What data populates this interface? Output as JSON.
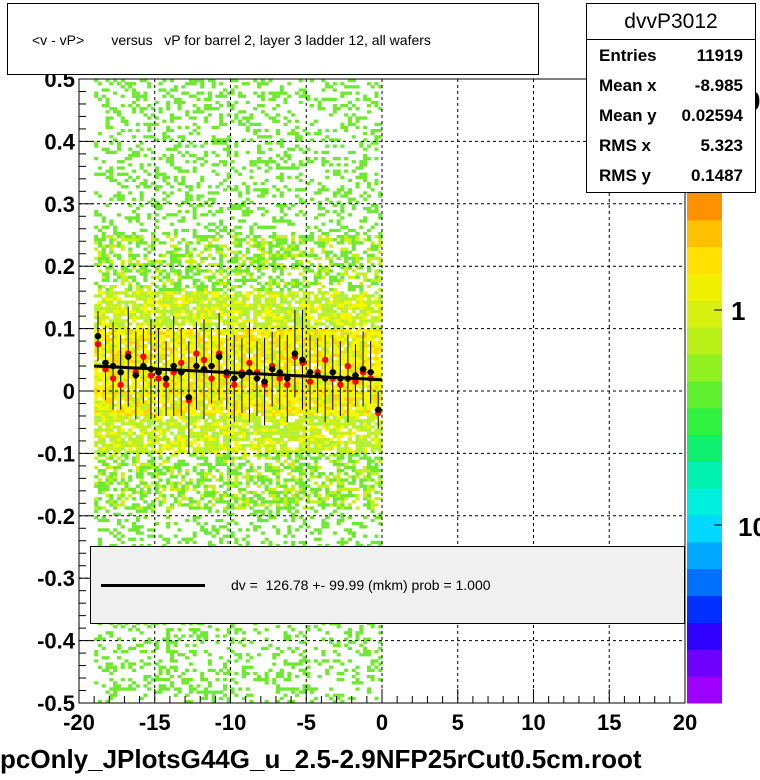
{
  "chart_data": {
    "type": "scatter",
    "title": "<v - vP>       versus   vP for barrel 2, layer 3 ladder 12, all wafers",
    "xlim": [
      -20,
      20
    ],
    "ylim": [
      -0.5,
      0.5
    ],
    "x_ticks": [
      "-20",
      "-15",
      "-10",
      "-5",
      "0",
      "5",
      "10",
      "15",
      "20"
    ],
    "y_ticks": [
      "-0.5",
      "-0.4",
      "-0.3",
      "-0.2",
      "-0.1",
      "0",
      "0.1",
      "0.2",
      "0.3",
      "0.4",
      "0.5"
    ],
    "grid": true,
    "z_labels": [
      "0",
      "1",
      "10"
    ],
    "histogram_x_range": [
      -19,
      0
    ],
    "profile_black": {
      "x": [
        -18.75,
        -18.25,
        -17.75,
        -17.25,
        -16.75,
        -16.25,
        -15.75,
        -15.25,
        -14.75,
        -14.25,
        -13.75,
        -13.25,
        -12.75,
        -12.25,
        -11.75,
        -11.25,
        -10.75,
        -10.25,
        -9.75,
        -9.25,
        -8.75,
        -8.25,
        -7.75,
        -7.25,
        -6.75,
        -6.25,
        -5.75,
        -5.25,
        -4.75,
        -4.25,
        -3.75,
        -3.25,
        -2.75,
        -2.25,
        -1.75,
        -1.25,
        -0.75,
        -0.25
      ],
      "y": [
        0.088,
        0.045,
        0.04,
        0.03,
        0.055,
        0.025,
        0.04,
        0.035,
        0.03,
        0.02,
        0.04,
        0.03,
        -0.01,
        0.04,
        0.035,
        0.04,
        0.055,
        0.03,
        0.02,
        0.025,
        0.03,
        0.02,
        0.015,
        0.035,
        0.03,
        0.02,
        0.06,
        0.05,
        0.03,
        0.025,
        0.02,
        0.03,
        0.02,
        0.02,
        0.025,
        0.035,
        0.03,
        -0.03
      ],
      "err": [
        0.04,
        0.06,
        0.07,
        0.06,
        0.08,
        0.07,
        0.06,
        0.08,
        0.07,
        0.06,
        0.08,
        0.07,
        0.09,
        0.07,
        0.08,
        0.06,
        0.07,
        0.06,
        0.07,
        0.06,
        0.08,
        0.06,
        0.07,
        0.06,
        0.06,
        0.07,
        0.07,
        0.08,
        0.06,
        0.06,
        0.07,
        0.06,
        0.06,
        0.07,
        0.05,
        0.06,
        0.05,
        0.03
      ]
    },
    "profile_red": {
      "x": [
        -18.75,
        -18.25,
        -17.75,
        -17.25,
        -16.75,
        -16.25,
        -15.75,
        -15.25,
        -14.75,
        -14.25,
        -13.75,
        -13.25,
        -12.75,
        -12.25,
        -11.75,
        -11.25,
        -10.75,
        -10.25,
        -9.75,
        -9.25,
        -8.75,
        -8.25,
        -7.75,
        -7.25,
        -6.75,
        -6.25,
        -5.75,
        -5.25,
        -4.75,
        -4.25,
        -3.75,
        -3.25,
        -2.75,
        -2.25,
        -1.75,
        -1.25,
        -0.75,
        -0.25
      ],
      "y": [
        0.075,
        0.035,
        0.02,
        0.01,
        0.06,
        0.03,
        0.055,
        0.025,
        0.02,
        0.01,
        0.03,
        0.045,
        -0.015,
        0.06,
        0.05,
        0.02,
        0.06,
        0.025,
        0.01,
        0.03,
        0.045,
        0.03,
        0.01,
        0.04,
        0.02,
        0.01,
        0.055,
        0.045,
        0.015,
        0.03,
        0.05,
        0.02,
        0.01,
        0.04,
        0.015,
        0.03,
        0.02,
        -0.035
      ]
    },
    "fit_line": {
      "x": [
        -19,
        0
      ],
      "y": [
        0.04,
        0.018
      ]
    },
    "colors": {
      "profile_black": "#000000",
      "profile_red": "#ff0000",
      "fit": "#000000"
    }
  },
  "stats": {
    "name": "dvvP3012",
    "rows": [
      {
        "label": "Entries",
        "value": "11919"
      },
      {
        "label": "Mean x",
        "value": "-8.985"
      },
      {
        "label": "Mean y",
        "value": "0.02594"
      },
      {
        "label": "RMS x",
        "value": "5.323"
      },
      {
        "label": "RMS y",
        "value": "0.1487"
      }
    ]
  },
  "legend": {
    "text": "dv =  126.78 +- 99.99 (mkm) prob = 1.000"
  },
  "footer": "pcOnly_JPlotsG44G_u_2.5-2.9NFP25rCut0.5cm.root"
}
